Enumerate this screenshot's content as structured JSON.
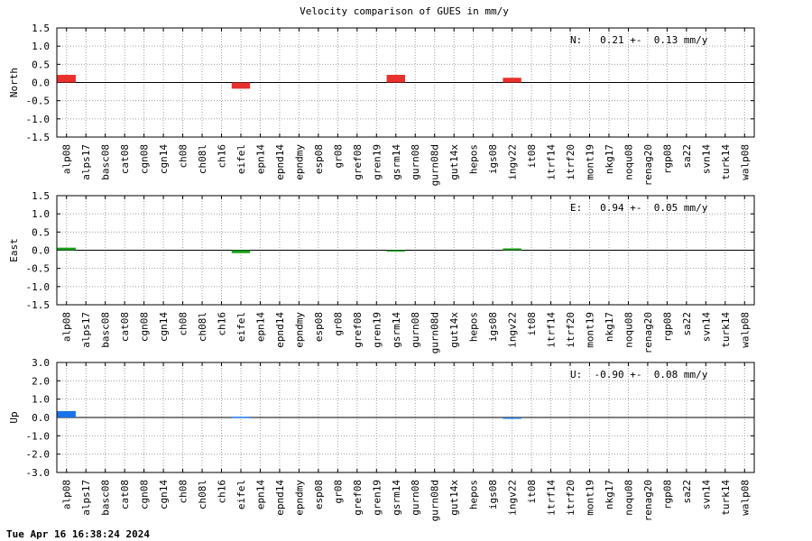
{
  "title": "Velocity comparison of GUES in mm/y",
  "footer": "Tue Apr 16 16:38:24 2024",
  "chart_data": {
    "type": "bar",
    "categories": [
      "alp08",
      "alps17",
      "basc08",
      "cat08",
      "cgn08",
      "cgn14",
      "ch08",
      "ch08l",
      "ch16",
      "eifel",
      "epn14",
      "epnd14",
      "epndmy",
      "esp08",
      "gr08",
      "gref08",
      "gren19",
      "gsrm14",
      "gurn08",
      "gurn08d",
      "gut14x",
      "hepos",
      "igs08",
      "ingv22",
      "it08",
      "itrf14",
      "itrf20",
      "mont19",
      "nkg17",
      "noqu08",
      "renag20",
      "rgp08",
      "sa22",
      "svn14",
      "turk14",
      "walp08"
    ],
    "panels": [
      {
        "ylabel": "North",
        "ylim": [
          -1.5,
          1.5
        ],
        "yticks": [
          "1.5",
          "1.0",
          "0.5",
          "0.0",
          "-0.5",
          "-1.0",
          "-1.5"
        ],
        "stat": "N:   0.21 +-  0.13 mm/y",
        "color": "#e8302c",
        "values": [
          0.21,
          0,
          0,
          0,
          0,
          0,
          0,
          0,
          0,
          -0.17,
          0,
          0,
          0,
          0,
          0,
          0,
          0,
          0.21,
          0,
          0,
          0,
          0,
          0,
          0.13,
          0,
          0,
          0,
          0,
          0,
          0,
          0,
          0,
          0,
          0,
          0,
          0
        ]
      },
      {
        "ylabel": "East",
        "ylim": [
          -1.5,
          1.5
        ],
        "yticks": [
          "1.5",
          "1.0",
          "0.5",
          "0.0",
          "-0.5",
          "-1.0",
          "-1.5"
        ],
        "stat": "E:   0.94 +-  0.05 mm/y",
        "color": "#1aa01a",
        "values": [
          0.07,
          0,
          0,
          0,
          0,
          0,
          0,
          0,
          0,
          -0.08,
          0,
          0,
          0,
          0,
          0,
          0,
          0,
          -0.03,
          0,
          0,
          0,
          0,
          0,
          0.05,
          0,
          0,
          0,
          0,
          0,
          0,
          0,
          0,
          0,
          0,
          0,
          0
        ]
      },
      {
        "ylabel": "Up",
        "ylim": [
          -3.0,
          3.0
        ],
        "yticks": [
          "3.0",
          "2.0",
          "1.0",
          "0.0",
          "-1.0",
          "-2.0",
          "-3.0"
        ],
        "stat": "U:  -0.90 +-  0.08 mm/y",
        "color": "#1a73e8",
        "values": [
          0.35,
          0,
          0,
          0,
          0,
          0,
          0,
          0,
          0,
          0.04,
          0,
          0,
          0,
          0,
          0,
          0,
          0,
          0,
          0,
          0,
          0,
          0,
          0,
          -0.05,
          0,
          0,
          0,
          0,
          0,
          0,
          0,
          0,
          0,
          0,
          0,
          0
        ]
      }
    ]
  }
}
